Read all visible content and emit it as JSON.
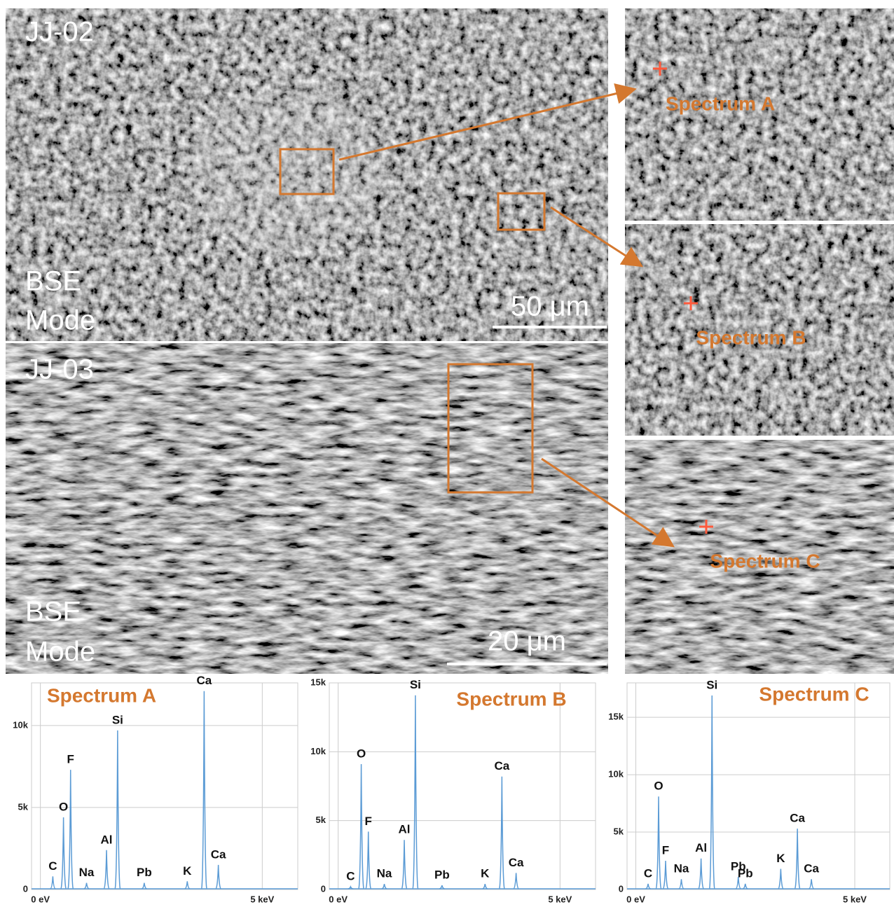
{
  "panels": [
    {
      "sample": "JJ-02",
      "mode": [
        "BSE",
        "Mode"
      ],
      "scale_bar": "50 μm"
    },
    {
      "sample": "JJ-03",
      "mode": [
        "BSE",
        "Mode"
      ],
      "scale_bar": "20 μm"
    }
  ],
  "insets": [
    "Spectrum A",
    "Spectrum B",
    "Spectrum C"
  ],
  "chart_data": [
    {
      "type": "spectrum",
      "title": "Spectrum A",
      "color": "#5b9bd5",
      "grid": true,
      "x": [
        0.28,
        0.52,
        0.68,
        1.04,
        1.49,
        1.74,
        2.34,
        3.31,
        3.69,
        4.01
      ],
      "values": [
        800,
        4400,
        7300,
        400,
        2400,
        9700,
        400,
        500,
        12100,
        1500
      ],
      "annotations": [
        "C",
        "O",
        "F",
        "Na",
        "Al",
        "Si",
        "Pb",
        "K",
        "Ca",
        "Ca"
      ],
      "xlim": [
        -0.2,
        5.8
      ],
      "xticks": [
        {
          "value": 0,
          "label": "0 eV"
        },
        {
          "value": 5,
          "label": "5 keV"
        }
      ],
      "ylim": [
        0,
        12600
      ],
      "yticks": [
        0,
        {
          "value": 5000,
          "label": "5k"
        },
        {
          "value": 10000,
          "label": "10k"
        }
      ]
    },
    {
      "type": "spectrum",
      "title": "Spectrum B",
      "color": "#5b9bd5",
      "grid": true,
      "x": [
        0.28,
        0.52,
        0.68,
        1.04,
        1.49,
        1.74,
        2.34,
        3.31,
        3.69,
        4.01
      ],
      "values": [
        200,
        9100,
        4200,
        400,
        3600,
        14100,
        300,
        400,
        8200,
        1200
      ],
      "annotations": [
        "C",
        "O",
        "F",
        "Na",
        "Al",
        "Si",
        "Pb",
        "K",
        "Ca",
        "Ca"
      ],
      "xlim": [
        -0.2,
        5.8
      ],
      "xticks": [
        {
          "value": 0,
          "label": "0 eV"
        },
        {
          "value": 5,
          "label": "5 keV"
        }
      ],
      "ylim": [
        0,
        15000
      ],
      "yticks": [
        0,
        {
          "value": 5000,
          "label": "5k"
        },
        {
          "value": 10000,
          "label": "10k"
        },
        {
          "value": 15000,
          "label": "15k"
        }
      ]
    },
    {
      "type": "spectrum",
      "title": "Spectrum C",
      "color": "#5b9bd5",
      "grid": true,
      "x": [
        0.28,
        0.52,
        0.68,
        1.04,
        1.49,
        1.74,
        2.34,
        2.5,
        3.31,
        3.69,
        4.01
      ],
      "values": [
        500,
        8100,
        2500,
        900,
        2700,
        16900,
        1100,
        500,
        1800,
        5300,
        900
      ],
      "annotations": [
        "C",
        "O",
        "F",
        "Na",
        "Al",
        "Si",
        "Pb",
        "Pb",
        "K",
        "Ca",
        "Ca"
      ],
      "xlim": [
        -0.2,
        5.8
      ],
      "xticks": [
        {
          "value": 0,
          "label": "0 eV"
        },
        {
          "value": 5,
          "label": "5 keV"
        }
      ],
      "ylim": [
        0,
        18000
      ],
      "yticks": [
        0,
        {
          "value": 5000,
          "label": "5k"
        },
        {
          "value": 10000,
          "label": "10k"
        },
        {
          "value": 15000,
          "label": "15k"
        }
      ]
    }
  ]
}
